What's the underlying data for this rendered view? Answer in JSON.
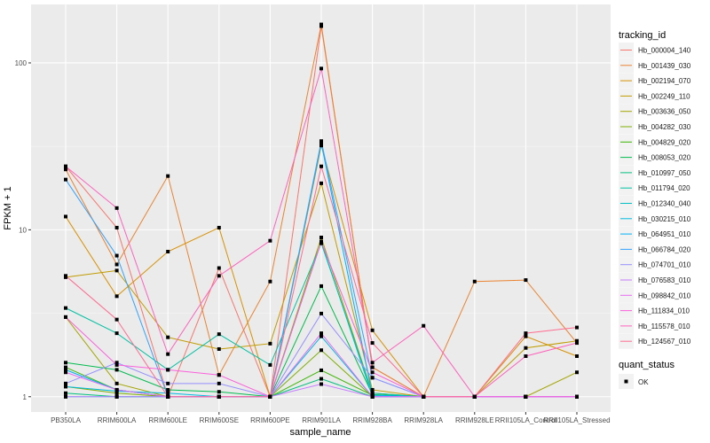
{
  "chart_data": {
    "type": "line",
    "xlabel": "sample_name",
    "ylabel": "FPKM + 1",
    "y_scale": "log10",
    "ylim": [
      0.81,
      224
    ],
    "y_ticks": [
      1,
      10,
      100
    ],
    "y_tick_labels": [
      "1",
      "10",
      "100"
    ],
    "grid": true,
    "background": "#EBEBEB",
    "legend_position": "right",
    "categories": [
      "PB350LA",
      "RRIM600LA",
      "RRIM600LE",
      "RRIM600SE",
      "RRIM600PE",
      "RRIM901LA",
      "RRIM928BA",
      "RRIM928LA",
      "RRIM928LE",
      "RRII105LA_Control",
      "RRII105LA_Stressed"
    ],
    "legend_title": "tracking_id",
    "shape_legend_title": "quant_status",
    "shape_legend_items": [
      "OK"
    ],
    "series": [
      {
        "name": "Hb_000004_140",
        "color": "#F8766D",
        "values": [
          24,
          10.3,
          1,
          5.9,
          1,
          166,
          1.5,
          1,
          1,
          1,
          1
        ]
      },
      {
        "name": "Hb_001439_030",
        "color": "#EA8331",
        "values": [
          23,
          6.2,
          21,
          1.35,
          4.9,
          170,
          1.5,
          1,
          4.9,
          5.0,
          2.1
        ]
      },
      {
        "name": "Hb_002194_070",
        "color": "#D89000",
        "values": [
          12,
          4.0,
          7.4,
          10.3,
          1,
          32,
          2.5,
          1,
          1,
          2.3,
          1.75
        ]
      },
      {
        "name": "Hb_002249_110",
        "color": "#C09B00",
        "values": [
          5.2,
          5.7,
          2.27,
          1.93,
          2.08,
          19,
          1.1,
          1,
          1,
          1.96,
          2.16
        ]
      },
      {
        "name": "Hb_003636_050",
        "color": "#A3A500",
        "values": [
          3.0,
          1.2,
          1,
          1,
          1,
          9,
          1.05,
          1,
          1,
          1,
          1.4
        ]
      },
      {
        "name": "Hb_004282_030",
        "color": "#7CAE00",
        "values": [
          1.15,
          1.05,
          1,
          1,
          1,
          1.9,
          1,
          1,
          1,
          1,
          1
        ]
      },
      {
        "name": "Hb_004829_020",
        "color": "#39B600",
        "values": [
          1.5,
          1.1,
          1,
          1,
          1,
          1.44,
          1.02,
          1,
          1,
          1,
          1
        ]
      },
      {
        "name": "Hb_008053_020",
        "color": "#00BB4E",
        "values": [
          1.6,
          1.45,
          1.1,
          1.07,
          1,
          4.6,
          1.03,
          1,
          1,
          1,
          1
        ]
      },
      {
        "name": "Hb_010997_050",
        "color": "#00BF7D",
        "values": [
          1.05,
          1,
          1,
          1,
          1,
          1.28,
          1,
          1,
          1,
          1,
          1
        ]
      },
      {
        "name": "Hb_011794_020",
        "color": "#00C1A3",
        "values": [
          3.4,
          2.4,
          1.45,
          2.37,
          1.55,
          8.3,
          1.05,
          1,
          1,
          1,
          1
        ]
      },
      {
        "name": "Hb_012340_040",
        "color": "#00BFC4",
        "values": [
          1.0,
          1,
          1,
          1,
          1,
          8.5,
          1,
          1,
          1,
          1,
          1
        ]
      },
      {
        "name": "Hb_030215_010",
        "color": "#00BAE0",
        "values": [
          1.15,
          1.08,
          1.05,
          1,
          1,
          2.3,
          1,
          1,
          1,
          1,
          1
        ]
      },
      {
        "name": "Hb_064951_010",
        "color": "#00B0F6",
        "values": [
          1.45,
          1.1,
          1,
          1,
          1,
          33,
          1.02,
          1,
          1,
          1,
          1
        ]
      },
      {
        "name": "Hb_066784_020",
        "color": "#35A2FF",
        "values": [
          20,
          7,
          1,
          1,
          1,
          34,
          1.3,
          1,
          1,
          1,
          1
        ]
      },
      {
        "name": "Hb_074701_010",
        "color": "#9590FF",
        "values": [
          1.2,
          1.6,
          1.2,
          1.2,
          1,
          3.15,
          1.3,
          1,
          1,
          1,
          1
        ]
      },
      {
        "name": "Hb_076583_010",
        "color": "#C77CFF",
        "values": [
          1,
          1,
          1,
          1,
          1,
          1.19,
          1,
          1,
          1,
          1,
          1
        ]
      },
      {
        "name": "Hb_098842_010",
        "color": "#E76BF3",
        "values": [
          1.4,
          1.1,
          1,
          1,
          1,
          2.4,
          1,
          1,
          1,
          1,
          1
        ]
      },
      {
        "name": "Hb_111834_010",
        "color": "#FA62DB",
        "values": [
          3.0,
          1.55,
          1.45,
          1.35,
          1,
          8.5,
          1.4,
          1,
          1,
          1,
          1
        ]
      },
      {
        "name": "Hb_115578_010",
        "color": "#FF62BC",
        "values": [
          24,
          13.5,
          1.8,
          5.3,
          8.6,
          92.5,
          1.6,
          2.66,
          1,
          1.75,
          2.1
        ]
      },
      {
        "name": "Hb_124567_010",
        "color": "#FF6C91",
        "values": [
          5.3,
          2.9,
          1,
          1,
          1,
          24,
          2.1,
          1,
          1,
          2.4,
          2.6
        ]
      }
    ]
  }
}
